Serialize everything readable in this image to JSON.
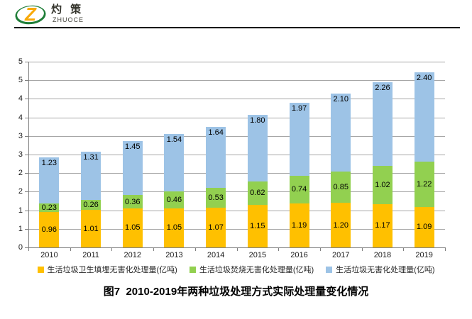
{
  "logo": {
    "monogram": "Z",
    "brand_cn": "灼 策",
    "brand_en": "ZHUOCE",
    "orange": "#F8A908",
    "green": "#1F7E38"
  },
  "title": "图7  2010-2019年两种垃圾处理方式实际处理量变化情况",
  "chart_data": {
    "type": "bar",
    "stacked": true,
    "categories": [
      "2010",
      "2011",
      "2012",
      "2013",
      "2014",
      "2015",
      "2016",
      "2017",
      "2018",
      "2019"
    ],
    "series": [
      {
        "name": "生活垃圾卫生填埋无害化处理量(亿吨)",
        "color": "#FFC000",
        "values": [
          0.96,
          1.01,
          1.05,
          1.05,
          1.07,
          1.15,
          1.19,
          1.2,
          1.17,
          1.09
        ]
      },
      {
        "name": "生活垃圾焚烧无害化处理量(亿吨)",
        "color": "#92D050",
        "values": [
          0.23,
          0.26,
          0.36,
          0.46,
          0.53,
          0.62,
          0.74,
          0.85,
          1.02,
          1.22
        ]
      },
      {
        "name": "生活垃圾无害化处理量(亿吨)",
        "color": "#9DC3E6",
        "values": [
          1.23,
          1.31,
          1.45,
          1.54,
          1.64,
          1.8,
          1.97,
          2.1,
          2.26,
          2.4
        ]
      }
    ],
    "xlabel": "",
    "ylabel": "",
    "ylim": [
      0,
      5
    ],
    "ytick_step": 0.5,
    "ytick_labels_bottom_to_top": [
      "0",
      "1",
      "1",
      "2",
      "2",
      "3",
      "3",
      "4",
      "4",
      "5",
      "5"
    ],
    "grid": true,
    "legend_position": "bottom",
    "data_labels": "shown on every segment, two decimals"
  }
}
